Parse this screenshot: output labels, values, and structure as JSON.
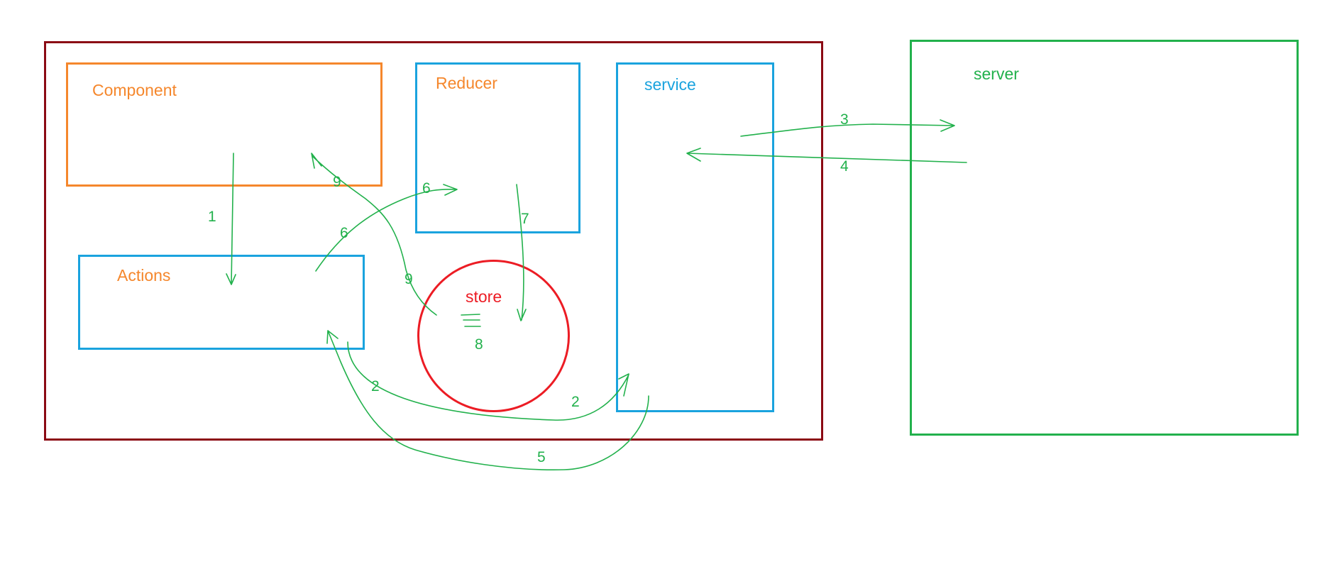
{
  "boxes": {
    "component": "Component",
    "reducer": "Reducer",
    "service": "service",
    "actions": "Actions",
    "store": "store",
    "server": "server"
  },
  "steps": {
    "s1": "1",
    "s2a": "2",
    "s2b": "2",
    "s3": "3",
    "s4": "4",
    "s5": "5",
    "s6a": "6",
    "s6b": "6",
    "s7": "7",
    "s8": "8",
    "s9a": "9",
    "s9b": "9"
  },
  "colors": {
    "app_frame": "#8b0a14",
    "component": "#f5872c",
    "blue_boxes": "#1aa3de",
    "store": "#ec1c24",
    "server_and_arrows": "#22b14c"
  }
}
